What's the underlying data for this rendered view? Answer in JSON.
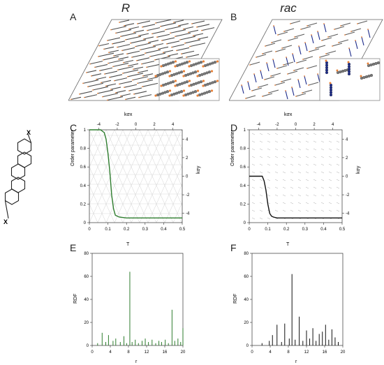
{
  "column_headers": {
    "left": "R",
    "right": "rac"
  },
  "panels": {
    "A": "A",
    "B": "B",
    "C": "C",
    "D": "D",
    "E": "E",
    "F": "F"
  },
  "molecule": {
    "substituent_label": "X"
  },
  "order_plots": {
    "top_axis_label": "kσx",
    "right_axis_label": "kσy",
    "y_label": "Order parameter",
    "x_label": "T",
    "x_ticks": [
      "0",
      "0.1",
      "0.2",
      "0.3",
      "0.4",
      "0.5"
    ],
    "y_ticks": [
      "0",
      "0.2",
      "0.4",
      "0.6",
      "0.8",
      "1"
    ],
    "top_ticks": [
      "-4",
      "-2",
      "0",
      "2",
      "4"
    ],
    "right_ticks": [
      "4",
      "2",
      "0",
      "-2",
      "-4"
    ]
  },
  "rdf_plots": {
    "y_label": "RDF",
    "x_label": "r",
    "x_ticks": [
      "0",
      "4",
      "8",
      "12",
      "16",
      "20"
    ],
    "y_ticks": [
      "0",
      "20",
      "40",
      "60",
      "80"
    ]
  },
  "colors": {
    "green": "#2e7d2e",
    "black": "#111111",
    "orange": "#e8823a",
    "navy": "#1b2a8a",
    "gray": "#8a8a8a"
  },
  "chart_data": [
    {
      "panel": "C",
      "type": "line",
      "xlabel": "T",
      "ylabel": "Order parameter",
      "xlim": [
        0,
        0.5
      ],
      "ylim": [
        0,
        1
      ],
      "series": [
        {
          "x": [
            0,
            0.03,
            0.06,
            0.08,
            0.09,
            0.1,
            0.11,
            0.12,
            0.13,
            0.14,
            0.16,
            0.2,
            0.3,
            0.4,
            0.5
          ],
          "y": [
            1,
            1,
            1,
            0.97,
            0.9,
            0.75,
            0.55,
            0.3,
            0.15,
            0.08,
            0.06,
            0.05,
            0.05,
            0.05,
            0.05
          ]
        }
      ]
    },
    {
      "panel": "D",
      "type": "line",
      "xlabel": "T",
      "ylabel": "Order parameter",
      "xlim": [
        0,
        0.5
      ],
      "ylim": [
        0,
        1
      ],
      "series": [
        {
          "x": [
            0,
            0.03,
            0.06,
            0.07,
            0.08,
            0.09,
            0.1,
            0.11,
            0.12,
            0.13,
            0.15,
            0.2,
            0.3,
            0.4,
            0.5
          ],
          "y": [
            0.5,
            0.5,
            0.5,
            0.5,
            0.45,
            0.35,
            0.2,
            0.1,
            0.07,
            0.06,
            0.05,
            0.05,
            0.05,
            0.05,
            0.05
          ]
        }
      ]
    },
    {
      "panel": "E",
      "type": "bar",
      "xlabel": "r",
      "ylabel": "RDF",
      "xlim": [
        0,
        20
      ],
      "ylim": [
        0,
        80
      ],
      "x": [
        1.2,
        2.2,
        3,
        3.6,
        4.6,
        5.2,
        6.2,
        7,
        7.6,
        8.3,
        8.8,
        9.5,
        10.2,
        11,
        11.7,
        12.4,
        13.2,
        14,
        14.7,
        15.3,
        16.1,
        16.8,
        17.6,
        18.2,
        18.9,
        19.5,
        20
      ],
      "y": [
        2,
        11,
        3,
        9,
        4,
        6,
        3,
        8,
        2,
        64,
        3,
        5,
        2,
        4,
        6,
        3,
        5,
        2,
        4,
        3,
        5,
        2,
        31,
        4,
        6,
        3,
        15
      ]
    },
    {
      "panel": "F",
      "type": "bar",
      "xlabel": "r",
      "ylabel": "RDF",
      "xlim": [
        0,
        20
      ],
      "ylim": [
        0,
        80
      ],
      "x": [
        2.2,
        3.8,
        4.5,
        5.5,
        6.5,
        7.2,
        8.2,
        8.8,
        9.5,
        10.4,
        11.2,
        12,
        12.7,
        13.4,
        14.1,
        14.8,
        15.5,
        16.2,
        16.9,
        17.6,
        18.3,
        19
      ],
      "y": [
        2,
        4,
        9,
        18,
        3,
        19,
        6,
        62,
        5,
        25,
        4,
        13,
        6,
        15,
        4,
        10,
        12,
        18,
        5,
        14,
        7,
        3
      ]
    }
  ]
}
